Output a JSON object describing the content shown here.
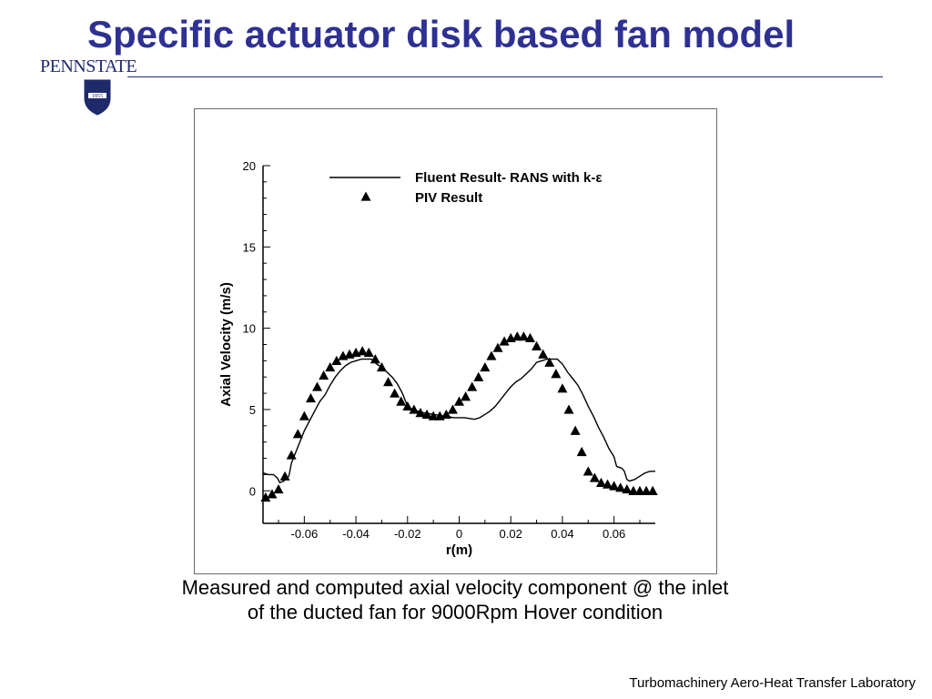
{
  "slide": {
    "title": "Specific actuator disk based fan model",
    "logo": {
      "wordmark": "PENNSTATE",
      "seal_year": "1855",
      "seal_icon": "penn-state-shield-icon"
    },
    "caption_line1": "Measured and computed axial velocity component @ the inlet",
    "caption_line2": "of the ducted fan for 9000Rpm Hover condition",
    "footer": "Turbomachinery Aero-Heat Transfer Laboratory",
    "colors": {
      "title": "#2e3192",
      "rule": "#1f2a7a"
    }
  },
  "chart_data": {
    "type": "line",
    "xlabel": "r(m)",
    "ylabel": "Axial Velocity (m/s)",
    "xlim": [
      -0.076,
      0.076
    ],
    "ylim": [
      -2,
      20
    ],
    "xticks": [
      -0.06,
      -0.04,
      -0.02,
      0,
      0.02,
      0.04,
      0.06
    ],
    "xtick_labels": [
      "-0.06",
      "-0.04",
      "-0.02",
      "0",
      "0.02",
      "0.04",
      "0.06"
    ],
    "yticks": [
      0,
      5,
      10,
      15,
      20
    ],
    "ytick_labels": [
      "0",
      "5",
      "10",
      "15",
      "20"
    ],
    "grid": false,
    "legend_position": "top",
    "series": [
      {
        "name": "Fluent Result- RANS with k-ε",
        "marker": "line",
        "x": [
          -0.076,
          -0.074,
          -0.072,
          -0.0705,
          -0.0695,
          -0.068,
          -0.066,
          -0.065,
          -0.064,
          -0.062,
          -0.06,
          -0.058,
          -0.056,
          -0.054,
          -0.052,
          -0.05,
          -0.048,
          -0.046,
          -0.044,
          -0.042,
          -0.04,
          -0.038,
          -0.036,
          -0.034,
          -0.032,
          -0.03,
          -0.028,
          -0.026,
          -0.024,
          -0.022,
          -0.02,
          -0.018,
          -0.016,
          -0.014,
          -0.012,
          -0.01,
          -0.008,
          -0.006,
          -0.004,
          -0.002,
          0,
          0.002,
          0.004,
          0.006,
          0.008,
          0.01,
          0.012,
          0.014,
          0.016,
          0.018,
          0.02,
          0.022,
          0.024,
          0.026,
          0.028,
          0.03,
          0.032,
          0.034,
          0.036,
          0.038,
          0.04,
          0.042,
          0.044,
          0.046,
          0.048,
          0.05,
          0.052,
          0.054,
          0.056,
          0.058,
          0.06,
          0.061,
          0.062,
          0.063,
          0.064,
          0.065,
          0.066,
          0.068,
          0.07,
          0.072,
          0.074,
          0.076
        ],
        "y": [
          1.1,
          1.0,
          1.0,
          0.8,
          0.5,
          0.6,
          0.9,
          1.7,
          2.1,
          2.9,
          3.7,
          4.3,
          4.9,
          5.5,
          5.9,
          6.5,
          7.0,
          7.4,
          7.7,
          7.9,
          8.0,
          8.1,
          8.1,
          8.1,
          7.8,
          7.6,
          7.3,
          7.0,
          6.6,
          6.0,
          5.2,
          5.0,
          4.9,
          4.8,
          4.75,
          4.7,
          4.65,
          4.6,
          4.55,
          4.5,
          4.5,
          4.5,
          4.45,
          4.4,
          4.5,
          4.7,
          4.9,
          5.2,
          5.6,
          6.0,
          6.4,
          6.7,
          6.9,
          7.2,
          7.5,
          7.9,
          8.0,
          8.1,
          8.1,
          8.1,
          7.8,
          7.3,
          6.9,
          6.5,
          5.9,
          5.2,
          4.6,
          3.9,
          3.3,
          2.6,
          2.1,
          1.5,
          1.45,
          1.4,
          1.2,
          0.7,
          0.6,
          0.7,
          0.9,
          1.1,
          1.2,
          1.2
        ]
      },
      {
        "name": "PIV Result",
        "marker": "triangle",
        "x": [
          -0.075,
          -0.0725,
          -0.07,
          -0.0675,
          -0.065,
          -0.0625,
          -0.06,
          -0.0575,
          -0.055,
          -0.0525,
          -0.05,
          -0.0475,
          -0.045,
          -0.0425,
          -0.04,
          -0.0375,
          -0.035,
          -0.0325,
          -0.03,
          -0.0275,
          -0.025,
          -0.0225,
          -0.02,
          -0.0175,
          -0.015,
          -0.0125,
          -0.01,
          -0.0075,
          -0.005,
          -0.0025,
          0,
          0.0025,
          0.005,
          0.0075,
          0.01,
          0.0125,
          0.015,
          0.0175,
          0.02,
          0.0225,
          0.025,
          0.0275,
          0.03,
          0.0325,
          0.035,
          0.0375,
          0.04,
          0.0425,
          0.045,
          0.0475,
          0.05,
          0.0525,
          0.055,
          0.0575,
          0.06,
          0.0625,
          0.065,
          0.0675,
          0.07,
          0.0725,
          0.075
        ],
        "y": [
          -0.4,
          -0.2,
          0.1,
          0.9,
          2.2,
          3.5,
          4.6,
          5.7,
          6.4,
          7.1,
          7.6,
          8.0,
          8.3,
          8.4,
          8.5,
          8.6,
          8.5,
          8.1,
          7.6,
          6.7,
          6.0,
          5.5,
          5.2,
          5.0,
          4.8,
          4.7,
          4.6,
          4.6,
          4.7,
          5.0,
          5.5,
          5.8,
          6.4,
          7.0,
          7.6,
          8.3,
          8.8,
          9.2,
          9.4,
          9.5,
          9.5,
          9.4,
          8.9,
          8.4,
          7.9,
          7.2,
          6.3,
          5.0,
          3.7,
          2.4,
          1.2,
          0.8,
          0.5,
          0.4,
          0.3,
          0.2,
          0.1,
          0.0,
          0.0,
          0.0,
          0.0
        ]
      }
    ]
  }
}
